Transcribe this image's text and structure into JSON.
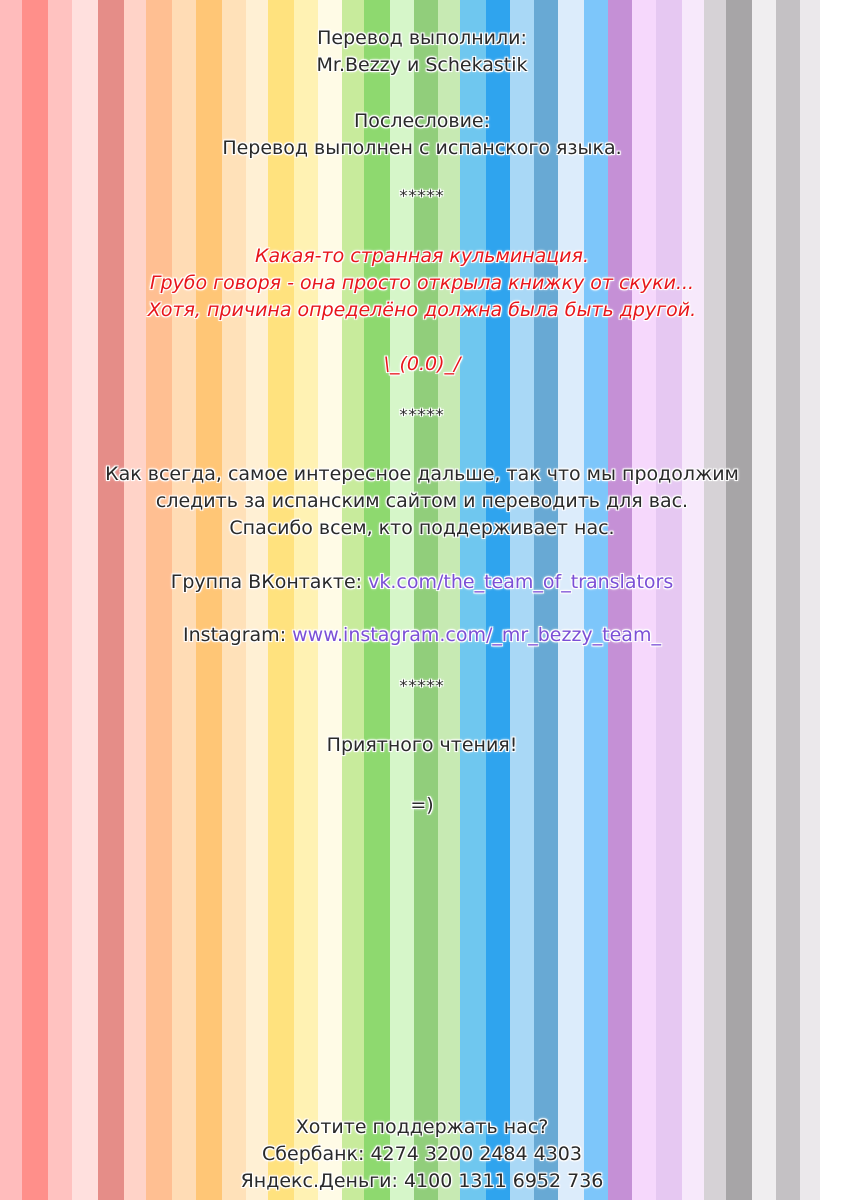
{
  "background": {
    "stripe_colors": [
      "#ffbcbc",
      "#ff8f8a",
      "#ffc2c0",
      "#ffe0de",
      "#e58d88",
      "#ffd3c8",
      "#ffbf92",
      "#ffdcb5",
      "#ffc676",
      "#ffe1b9",
      "#fff0d4",
      "#ffe27e",
      "#fff2b3",
      "#fffbe6",
      "#c8eb9c",
      "#8ed96f",
      "#d6f6c9",
      "#91ce7b",
      "#c7eab3",
      "#6fc7ef",
      "#2fa4ee",
      "#a9d8f6",
      "#68a9d4",
      "#dcecfb",
      "#7dc6fa",
      "#c590d6",
      "#f6d8fc",
      "#e6c8f2",
      "#f7e9fb",
      "#d6d2d6",
      "#a7a5a7",
      "#f0eef0",
      "#c4c1c4",
      "#ebe8eb"
    ],
    "stripe_widths": [
      22,
      26,
      24,
      26,
      26,
      22,
      26,
      24,
      26,
      24,
      22,
      26,
      24,
      24,
      22,
      26,
      24,
      24,
      22,
      26,
      24,
      24,
      24,
      26,
      24,
      24,
      24,
      26,
      22,
      22,
      26,
      24,
      24,
      20
    ]
  },
  "credits": {
    "title": "Перевод выполнили:",
    "names": "Mr.Bezzy и Schekastik"
  },
  "afterword": {
    "title": "Послесловие:",
    "text": "Перевод выполнен с испанского языка."
  },
  "separator": "*****",
  "comment": {
    "line1": "Какая-то странная кульминация.",
    "line2": "Грубо говоря - она просто открыла книжку от скуки...",
    "line3": "Хотя, причина определёно должна была быть другой.",
    "emoticon": "\\_(0.0)_/"
  },
  "message": {
    "line1": "Как всегда, самое интересное дальше, так что мы продолжим",
    "line2": "следить за испанским сайтом и переводить для вас.",
    "line3": "Спасибо всем, кто поддерживает нас."
  },
  "links": {
    "vk_label": "Группа ВКонтакте:",
    "vk_url": "vk.com/the_team_of_translators",
    "instagram_label": "Instagram:",
    "instagram_url": "www.instagram.com/_mr_bezzy_team_"
  },
  "closing": {
    "text": "Приятного чтения!",
    "smiley": "=)"
  },
  "support": {
    "title": "Хотите поддержать нас?",
    "sberbank": "Сбербанк: 4274 3200 2484 4303",
    "yandex": "Яндекс.Деньги: 4100 1311 6952 736"
  }
}
